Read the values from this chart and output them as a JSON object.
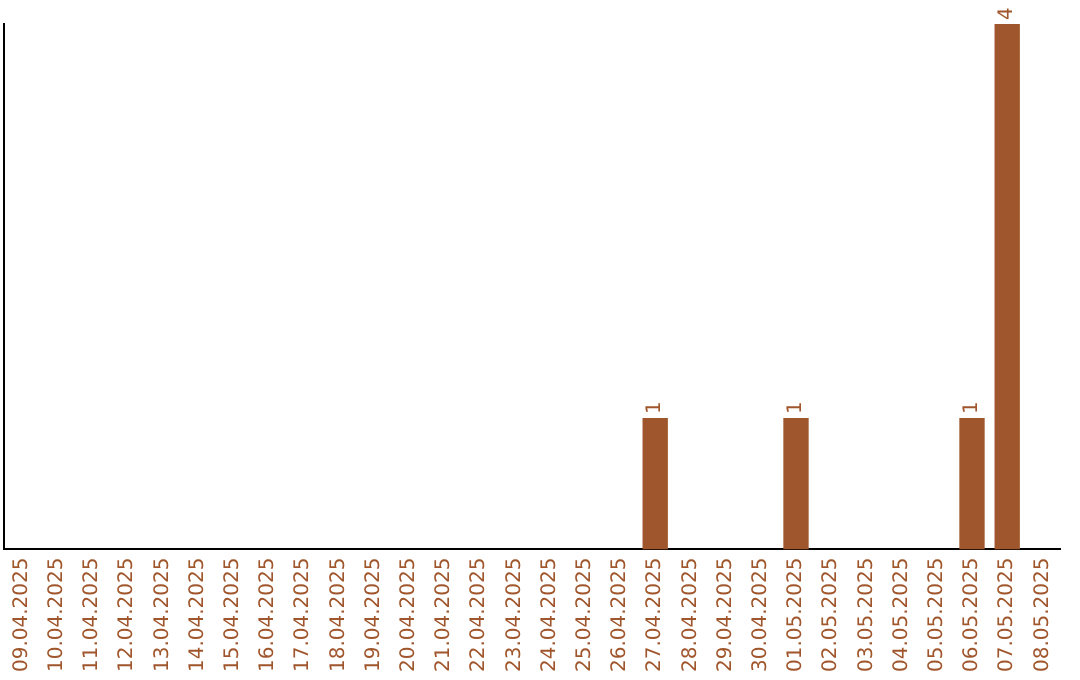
{
  "chart_data": {
    "type": "bar",
    "categories": [
      "09.04.2025",
      "10.04.2025",
      "11.04.2025",
      "12.04.2025",
      "13.04.2025",
      "14.04.2025",
      "15.04.2025",
      "16.04.2025",
      "17.04.2025",
      "18.04.2025",
      "19.04.2025",
      "20.04.2025",
      "21.04.2025",
      "22.04.2025",
      "23.04.2025",
      "24.04.2025",
      "25.04.2025",
      "26.04.2025",
      "27.04.2025",
      "28.04.2025",
      "29.04.2025",
      "30.04.2025",
      "01.05.2025",
      "02.05.2025",
      "03.05.2025",
      "04.05.2025",
      "05.05.2025",
      "06.05.2025",
      "07.05.2025",
      "08.05.2025"
    ],
    "values": [
      null,
      null,
      null,
      null,
      null,
      null,
      null,
      null,
      null,
      null,
      null,
      null,
      null,
      null,
      null,
      null,
      null,
      null,
      1,
      null,
      null,
      null,
      1,
      null,
      null,
      null,
      null,
      1,
      4,
      null
    ],
    "data_labels": true,
    "color": "#a0562c",
    "tick_labels": "x",
    "grid": false,
    "legend": false
  }
}
